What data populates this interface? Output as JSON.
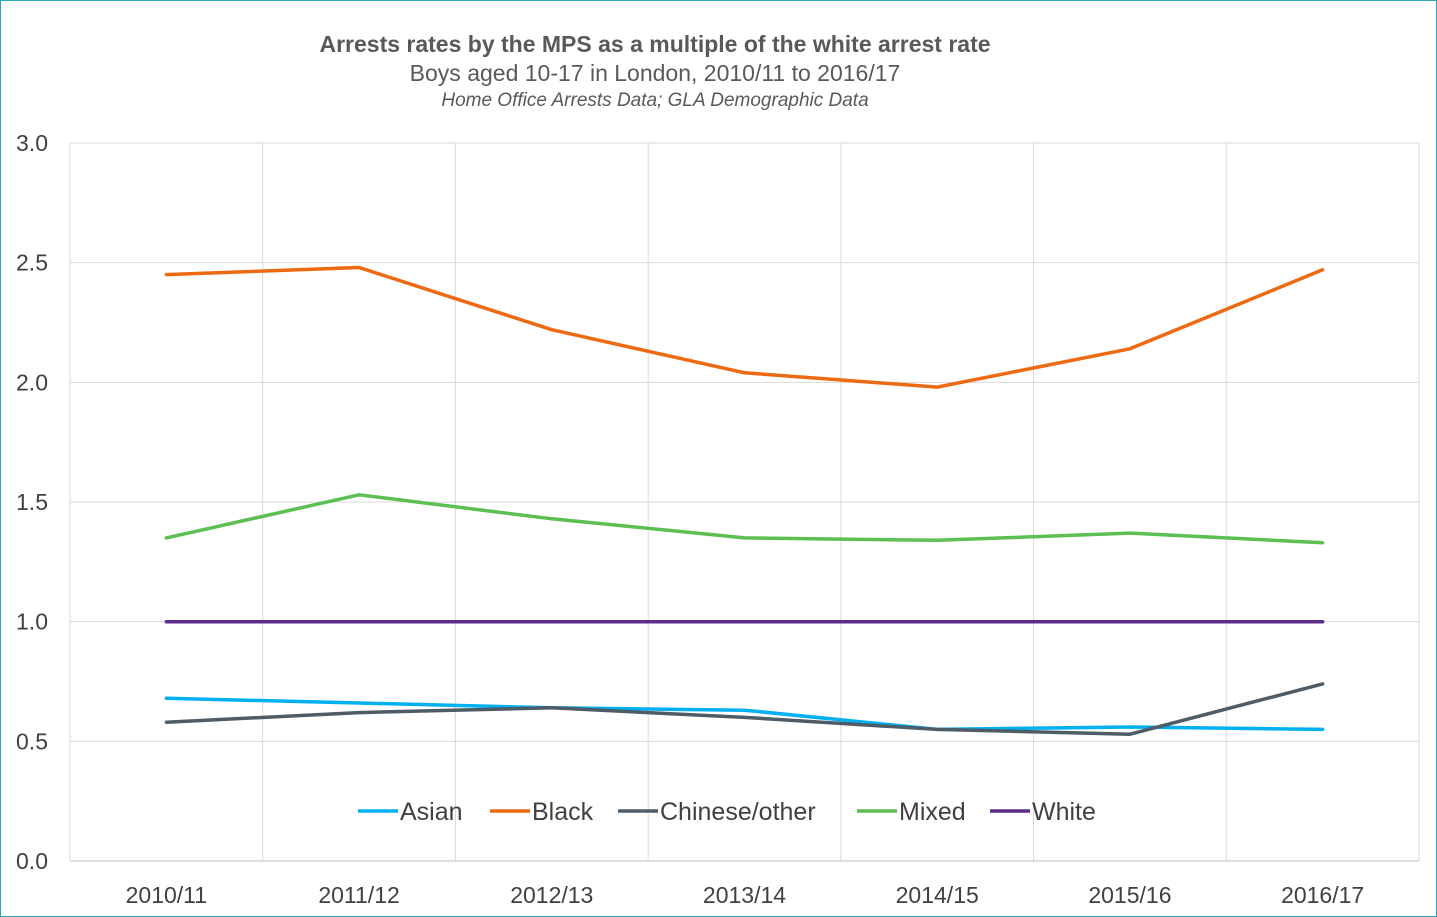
{
  "chart_data": {
    "type": "line",
    "title": "Arrests rates by the MPS as a multiple of the white arrest rate",
    "subtitle": "Boys aged 10-17 in London, 2010/11 to 2016/17",
    "source": "Home Office Arrests Data; GLA Demographic Data",
    "categories": [
      "2010/11",
      "2011/12",
      "2012/13",
      "2013/14",
      "2014/15",
      "2015/16",
      "2016/17"
    ],
    "ylim": [
      0,
      3
    ],
    "yticks": [
      "0.0",
      "0.5",
      "1.0",
      "1.5",
      "2.0",
      "2.5",
      "3.0"
    ],
    "grid": true,
    "legend_position": "bottom-inside",
    "series": [
      {
        "name": "Asian",
        "color": "#00b0f0",
        "values": [
          0.68,
          0.66,
          0.64,
          0.63,
          0.55,
          0.56,
          0.55
        ]
      },
      {
        "name": "Black",
        "color": "#ed6a12",
        "values": [
          2.45,
          2.48,
          2.22,
          2.04,
          1.98,
          2.14,
          2.47
        ]
      },
      {
        "name": "Chinese/other",
        "color": "#4d5c66",
        "values": [
          0.58,
          0.62,
          0.64,
          0.6,
          0.55,
          0.53,
          0.74
        ]
      },
      {
        "name": "Mixed",
        "color": "#5bbf52",
        "values": [
          1.35,
          1.53,
          1.43,
          1.35,
          1.34,
          1.37,
          1.33
        ]
      },
      {
        "name": "White",
        "color": "#5b2c8c",
        "values": [
          1.0,
          1.0,
          1.0,
          1.0,
          1.0,
          1.0,
          1.0
        ]
      }
    ]
  }
}
